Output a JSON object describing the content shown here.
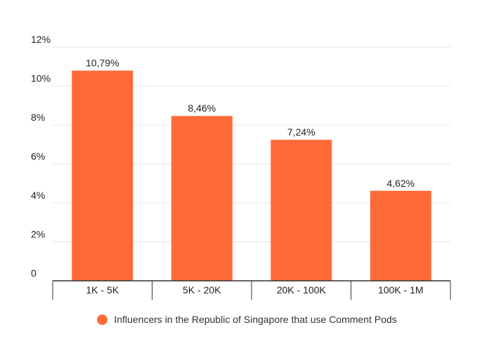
{
  "colors": {
    "bar": "#FF6B37",
    "grid": "#E6E6E6",
    "axis": "#333333",
    "text": "#222222"
  },
  "chart_data": {
    "type": "bar",
    "title": "",
    "xlabel": "",
    "ylabel": "",
    "ylim": [
      0,
      12
    ],
    "yticks": [
      0,
      2,
      4,
      6,
      8,
      10,
      12
    ],
    "ytick_labels": [
      "0",
      "2%",
      "4%",
      "6%",
      "8%",
      "10%",
      "12%"
    ],
    "categories": [
      "1K - 5K",
      "5K - 20K",
      "20K - 100K",
      "100K - 1M"
    ],
    "series": [
      {
        "name": "Influencers in the Republic of Singapore that use Comment Pods",
        "values": [
          10.79,
          8.46,
          7.24,
          4.62
        ],
        "data_labels": [
          "10,79%",
          "8,46%",
          "7,24%",
          "4,62%"
        ]
      }
    ],
    "grid": true,
    "legend_position": "bottom-center"
  }
}
